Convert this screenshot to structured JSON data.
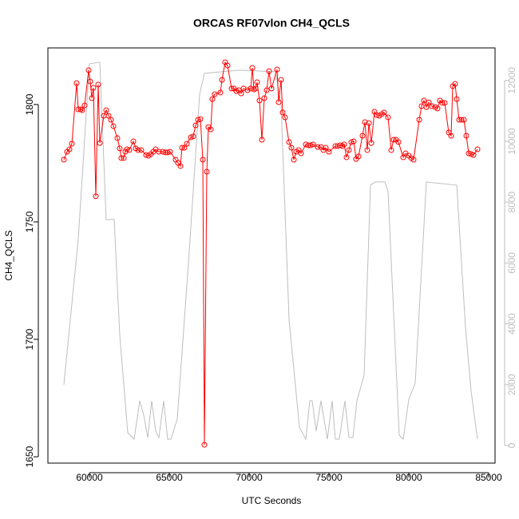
{
  "chart_data": {
    "type": "line",
    "title": "ORCAS RF07vlon CH4_QCLS",
    "x_label": "UTC Seconds",
    "y_label": "CH4_QCLS",
    "xlim": [
      57400,
      85400
    ],
    "ylim": [
      1647.3,
      1824.1
    ],
    "y2lim": [
      -577,
      13070
    ],
    "xticks": [
      60000,
      65000,
      70000,
      75000,
      80000,
      85000
    ],
    "yticks": [
      1650,
      1700,
      1750,
      1800
    ],
    "y2ticks": [
      0,
      2000,
      4000,
      6000,
      8000,
      10000,
      12000
    ],
    "y2_color": "#bebebe",
    "series": [
      {
        "color": "#ff0000",
        "markers": true,
        "x": [
          58400,
          58600,
          58750,
          58900,
          59200,
          59300,
          59450,
          59550,
          59700,
          59950,
          60050,
          60150,
          60250,
          60400,
          60550,
          60650,
          60900,
          61050,
          61200,
          61350,
          61500,
          61750,
          61900,
          62000,
          62150,
          62250,
          62350,
          62500,
          62750,
          62900,
          63050,
          63250,
          63550,
          63700,
          63850,
          64000,
          64150,
          64350,
          64600,
          64750,
          64900,
          65050,
          65400,
          65550,
          65700,
          65800,
          65950,
          66100,
          66350,
          66500,
          66650,
          66800,
          66950,
          67100,
          67200,
          67350,
          67450,
          67600,
          67700,
          67850,
          68200,
          68300,
          68500,
          68650,
          68900,
          69050,
          69200,
          69350,
          69500,
          69650,
          69900,
          70100,
          70200,
          70300,
          70400,
          70500,
          70650,
          70800,
          70950,
          71100,
          71250,
          71400,
          71750,
          71850,
          72000,
          72100,
          72250,
          72500,
          72650,
          72800,
          72950,
          73100,
          73250,
          73550,
          73700,
          73850,
          74000,
          74300,
          74500,
          74650,
          74800,
          75000,
          75400,
          75550,
          75700,
          75850,
          75950,
          76100,
          76250,
          76400,
          76550,
          76700,
          76850,
          77100,
          77250,
          77400,
          77500,
          77650,
          77850,
          78000,
          78150,
          78300,
          78450,
          78700,
          78900,
          79050,
          79200,
          79350,
          79650,
          79800,
          80000,
          80150,
          80300,
          80650,
          80800,
          80950,
          81100,
          81250,
          81450,
          81650,
          81800,
          81950,
          82100,
          82250,
          82500,
          82650,
          82750,
          82900,
          83000,
          83150,
          83300,
          83450,
          83600,
          83750,
          83900,
          84050,
          84300
        ],
        "values": [
          1776.5,
          1779.9,
          1780.9,
          1783.3,
          1809.1,
          1797.9,
          1797.9,
          1797.6,
          1799.6,
          1814.6,
          1809.8,
          1802.7,
          1807.1,
          1760.9,
          1808.5,
          1783.6,
          1795.2,
          1797.6,
          1795.2,
          1793.5,
          1790.8,
          1785.7,
          1781.3,
          1777.2,
          1777.2,
          1779.9,
          1780.9,
          1780.6,
          1784.3,
          1781.3,
          1780.6,
          1780.6,
          1778.5,
          1778.2,
          1778.9,
          1779.9,
          1780.9,
          1779.9,
          1779.9,
          1779.6,
          1779.6,
          1779.9,
          1776.5,
          1775.1,
          1773.8,
          1781.6,
          1781.6,
          1783.3,
          1786,
          1786.4,
          1791.1,
          1793.5,
          1793.8,
          1776.5,
          1655.1,
          1771.4,
          1790.4,
          1789.4,
          1802.3,
          1804.4,
          1805.1,
          1810.5,
          1818,
          1816.6,
          1806.8,
          1806.8,
          1805.7,
          1806.1,
          1804.7,
          1806.8,
          1806.1,
          1806.8,
          1815.6,
          1806.4,
          1806.8,
          1809.5,
          1801.7,
          1785,
          1802.7,
          1806.1,
          1814.2,
          1806.8,
          1814.9,
          1801,
          1810.5,
          1796.6,
          1794.5,
          1784,
          1781.6,
          1776.5,
          1779.9,
          1780.6,
          1779.2,
          1783,
          1782.6,
          1782.6,
          1783,
          1781.9,
          1781.9,
          1780.6,
          1781.6,
          1779.9,
          1782.3,
          1782.3,
          1782.6,
          1782.3,
          1783,
          1777.5,
          1780.6,
          1784,
          1784.3,
          1776.8,
          1777.9,
          1786.7,
          1792.5,
          1780.6,
          1792.1,
          1783.6,
          1796.9,
          1795.5,
          1795.2,
          1795.9,
          1796.6,
          1794.5,
          1780.6,
          1785,
          1785,
          1784,
          1777.5,
          1779.2,
          1778.2,
          1777.2,
          1776.5,
          1793.5,
          1799.3,
          1801.7,
          1798.9,
          1800.9,
          1799.3,
          1798.9,
          1798.3,
          1801.7,
          1800.7,
          1800.7,
          1788.1,
          1786.7,
          1807.8,
          1808.8,
          1802.3,
          1793.5,
          1793.5,
          1793.5,
          1786.7,
          1779.2,
          1778.9,
          1778.5,
          1780.9
        ]
      },
      {
        "color": "#bebebe",
        "axis": "y2",
        "markers": false,
        "x": [
          58400,
          59300,
          60000,
          60650,
          61050,
          61550,
          61900,
          62400,
          62800,
          63150,
          63400,
          63650,
          63900,
          64150,
          64350,
          64650,
          64900,
          65100,
          65500,
          66200,
          66900,
          67200,
          69400,
          71650,
          72000,
          72500,
          73150,
          73550,
          73800,
          73950,
          74200,
          74500,
          74900,
          75200,
          75400,
          75650,
          76000,
          76250,
          76500,
          76750,
          77200,
          77600,
          77900,
          78500,
          78700,
          79400,
          79650,
          80000,
          80400,
          81100,
          83000,
          83550,
          83900,
          84300
        ],
        "values": [
          2000,
          6773,
          12548,
          12600,
          7429,
          7429,
          3623,
          420,
          210,
          1470,
          998,
          263,
          1470,
          473,
          263,
          1470,
          210,
          210,
          866,
          5985,
          11550,
          12233,
          12338,
          12285,
          11235,
          4148,
          604,
          210,
          1470,
          1470,
          473,
          1470,
          210,
          1470,
          210,
          210,
          1470,
          263,
          263,
          1470,
          2310,
          8558,
          8663,
          8663,
          8348,
          341,
          210,
          1523,
          2048,
          8663,
          8558,
          3885,
          1785,
          210
        ]
      }
    ]
  }
}
